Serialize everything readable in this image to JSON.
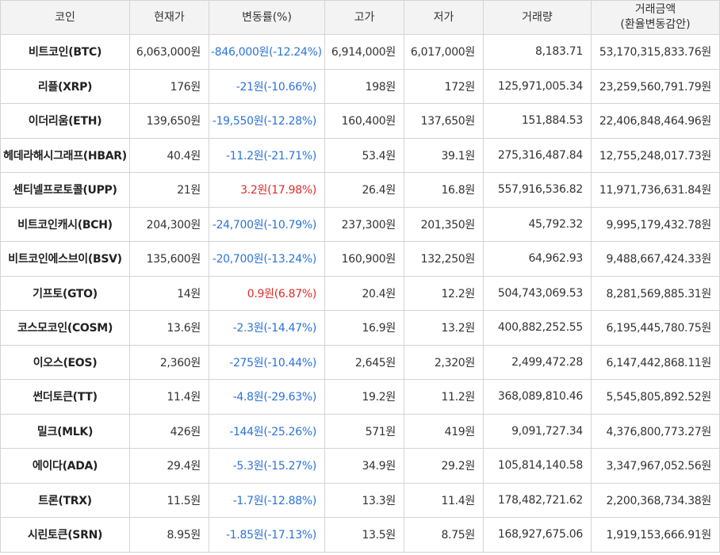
{
  "headers": [
    "코인",
    "현재가",
    "변동률(%)",
    "고가",
    "저가",
    "거래량",
    "거래금액\n(환율변동감안)"
  ],
  "colors": {
    "down": "#2b73d8",
    "up": "#e02b2b"
  },
  "rows": [
    {
      "name": "비트코인(BTC)",
      "price": "6,063,000원",
      "change": "-846,000원(-12.24%)",
      "dir": "down",
      "high": "6,914,000원",
      "low": "6,017,000원",
      "volume": "8,183.71",
      "amount": "53,170,315,833.76원"
    },
    {
      "name": "리플(XRP)",
      "price": "176원",
      "change": "-21원(-10.66%)",
      "dir": "down",
      "high": "198원",
      "low": "172원",
      "volume": "125,971,005.34",
      "amount": "23,259,560,791.79원"
    },
    {
      "name": "이더리움(ETH)",
      "price": "139,650원",
      "change": "-19,550원(-12.28%)",
      "dir": "down",
      "high": "160,400원",
      "low": "137,650원",
      "volume": "151,884.53",
      "amount": "22,406,848,464.96원"
    },
    {
      "name": "헤데라해시그래프(HBAR)",
      "price": "40.4원",
      "change": "-11.2원(-21.71%)",
      "dir": "down",
      "high": "53.4원",
      "low": "39.1원",
      "volume": "275,316,487.84",
      "amount": "12,755,248,017.73원"
    },
    {
      "name": "센티넬프로토콜(UPP)",
      "price": "21원",
      "change": "3.2원(17.98%)",
      "dir": "up",
      "high": "26.4원",
      "low": "16.8원",
      "volume": "557,916,536.82",
      "amount": "11,971,736,631.84원"
    },
    {
      "name": "비트코인캐시(BCH)",
      "price": "204,300원",
      "change": "-24,700원(-10.79%)",
      "dir": "down",
      "high": "237,300원",
      "low": "201,350원",
      "volume": "45,792.32",
      "amount": "9,995,179,432.78원"
    },
    {
      "name": "비트코인에스브이(BSV)",
      "price": "135,600원",
      "change": "-20,700원(-13.24%)",
      "dir": "down",
      "high": "160,900원",
      "low": "132,250원",
      "volume": "64,962.93",
      "amount": "9,488,667,424.33원"
    },
    {
      "name": "기프토(GTO)",
      "price": "14원",
      "change": "0.9원(6.87%)",
      "dir": "up",
      "high": "20.4원",
      "low": "12.2원",
      "volume": "504,743,069.53",
      "amount": "8,281,569,885.31원"
    },
    {
      "name": "코스모코인(COSM)",
      "price": "13.6원",
      "change": "-2.3원(-14.47%)",
      "dir": "down",
      "high": "16.9원",
      "low": "13.2원",
      "volume": "400,882,252.55",
      "amount": "6,195,445,780.75원"
    },
    {
      "name": "이오스(EOS)",
      "price": "2,360원",
      "change": "-275원(-10.44%)",
      "dir": "down",
      "high": "2,645원",
      "low": "2,320원",
      "volume": "2,499,472.28",
      "amount": "6,147,442,868.11원"
    },
    {
      "name": "썬더토큰(TT)",
      "price": "11.4원",
      "change": "-4.8원(-29.63%)",
      "dir": "down",
      "high": "19.2원",
      "low": "11.2원",
      "volume": "368,089,810.46",
      "amount": "5,545,805,892.52원"
    },
    {
      "name": "밀크(MLK)",
      "price": "426원",
      "change": "-144원(-25.26%)",
      "dir": "down",
      "high": "571원",
      "low": "419원",
      "volume": "9,091,727.34",
      "amount": "4,376,800,773.27원"
    },
    {
      "name": "에이다(ADA)",
      "price": "29.4원",
      "change": "-5.3원(-15.27%)",
      "dir": "down",
      "high": "34.9원",
      "low": "29.2원",
      "volume": "105,814,140.58",
      "amount": "3,347,967,052.56원"
    },
    {
      "name": "트론(TRX)",
      "price": "11.5원",
      "change": "-1.7원(-12.88%)",
      "dir": "down",
      "high": "13.3원",
      "low": "11.4원",
      "volume": "178,482,721.62",
      "amount": "2,200,368,734.38원"
    },
    {
      "name": "시린토큰(SRN)",
      "price": "8.95원",
      "change": "-1.85원(-17.13%)",
      "dir": "down",
      "high": "13.5원",
      "low": "8.75원",
      "volume": "168,927,675.06",
      "amount": "1,919,153,666.91원"
    }
  ]
}
